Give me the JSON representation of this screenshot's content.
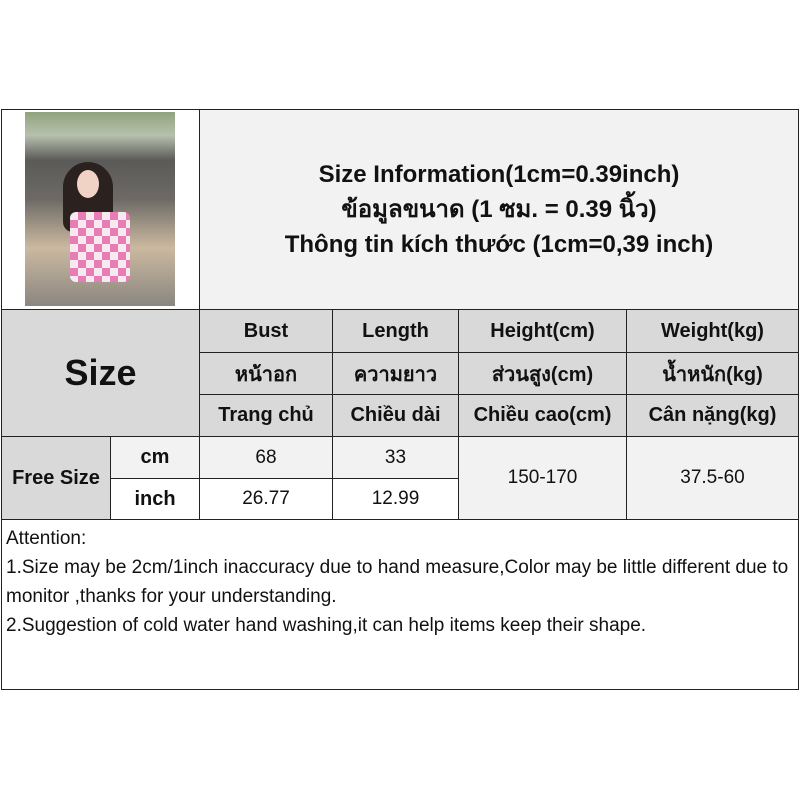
{
  "title": {
    "line1": "Size Information(1cm=0.39inch)",
    "line2": "ข้อมูลขนาด (1 ซม. = 0.39 นิ้ว)",
    "line3": "Thông tin kích thước (1cm=0,39 inch)"
  },
  "size_label": "Size",
  "columns": [
    {
      "en": "Bust",
      "th": "หน้าอก",
      "vi": "Trang chủ"
    },
    {
      "en": "Length",
      "th": "ความยาว",
      "vi": "Chiều dài"
    },
    {
      "en": "Height(cm)",
      "th": "ส่วนสูง(cm)",
      "vi": "Chiều cao(cm)"
    },
    {
      "en": "Weight(kg)",
      "th": "น้ำหนัก(kg)",
      "vi": "Cân nặng(kg)"
    }
  ],
  "row": {
    "size": "Free Size",
    "cm_label": "cm",
    "inch_label": "inch",
    "bust_cm": "68",
    "length_cm": "33",
    "bust_inch": "26.77",
    "length_inch": "12.99",
    "height": "150-170",
    "weight": "37.5-60"
  },
  "attention": {
    "heading": "Attention:",
    "note1": "1.Size may be 2cm/1inch inaccuracy due to hand measure,Color may be little different due to monitor ,thanks for your understanding.",
    "note2": "2.Suggestion of cold water hand washing,it can help items keep their shape."
  }
}
